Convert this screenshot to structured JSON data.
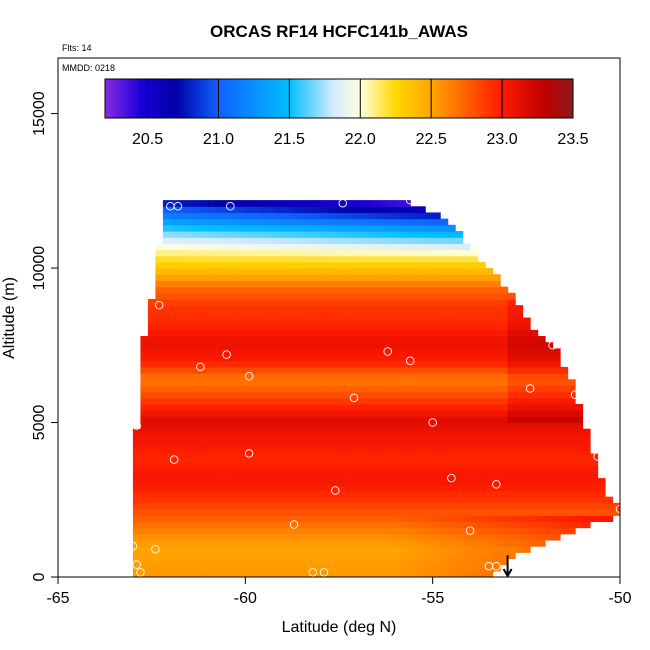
{
  "chart_data": {
    "type": "heatmap",
    "title": "ORCAS RF14 HCFC141b_AWAS",
    "annotations": {
      "flights": "Flts: 14",
      "date": "MMDD: 0218"
    },
    "xlabel": "Latitude (deg N)",
    "ylabel": "Altitude (m)",
    "xlim": [
      -65,
      -50
    ],
    "ylim": [
      0,
      16800
    ],
    "x_ticks": [
      -65,
      -60,
      -55,
      -50
    ],
    "x_tick_labels": [
      "-65",
      "-60",
      "-55",
      "-50"
    ],
    "y_ticks": [
      0,
      5000,
      10000,
      15000
    ],
    "y_tick_labels": [
      "0",
      "5000",
      "10000",
      "15000"
    ],
    "colorbar": {
      "min": 20.2,
      "max": 23.5,
      "ticks": [
        20.5,
        21.0,
        21.5,
        22.0,
        22.5,
        23.0,
        23.5
      ],
      "tick_labels": [
        "20.5",
        "21.0",
        "21.5",
        "22.0",
        "22.5",
        "23.0",
        "23.5"
      ],
      "stops": [
        {
          "value": 20.2,
          "color": "#8a2be2"
        },
        {
          "value": 20.45,
          "color": "#1a00d8"
        },
        {
          "value": 20.7,
          "color": "#0000a8"
        },
        {
          "value": 21.0,
          "color": "#1060ff"
        },
        {
          "value": 21.5,
          "color": "#00bfff"
        },
        {
          "value": 21.8,
          "color": "#cfe9ff"
        },
        {
          "value": 22.0,
          "color": "#ffffe0"
        },
        {
          "value": 22.25,
          "color": "#ffd700"
        },
        {
          "value": 22.5,
          "color": "#ffa500"
        },
        {
          "value": 23.0,
          "color": "#ff1a00"
        },
        {
          "value": 23.3,
          "color": "#c00000"
        },
        {
          "value": 23.5,
          "color": "#8b1a1a"
        }
      ]
    },
    "coverage_boundary": [
      [
        -63.0,
        0
      ],
      [
        -63.0,
        4900
      ],
      [
        -62.8,
        4900
      ],
      [
        -62.8,
        7800
      ],
      [
        -62.5,
        7800
      ],
      [
        -62.5,
        9000
      ],
      [
        -62.3,
        9000
      ],
      [
        -62.3,
        10800
      ],
      [
        -62.1,
        10800
      ],
      [
        -62.1,
        12200
      ],
      [
        -55.8,
        12200
      ],
      [
        -55.0,
        11800
      ],
      [
        -54.3,
        11200
      ],
      [
        -53.5,
        10000
      ],
      [
        -52.9,
        9200
      ],
      [
        -52.4,
        8200
      ],
      [
        -51.8,
        7600
      ],
      [
        -51.2,
        6200
      ],
      [
        -51.0,
        5200
      ],
      [
        -50.7,
        4000
      ],
      [
        -50.4,
        2800
      ],
      [
        -50.0,
        2200
      ],
      [
        -50.0,
        2000
      ],
      [
        -51.0,
        1600
      ],
      [
        -52.0,
        1100
      ],
      [
        -53.0,
        600
      ],
      [
        -53.5,
        0
      ]
    ],
    "gradient_keypoints": [
      {
        "alt": 0,
        "value": 22.55
      },
      {
        "alt": 900,
        "value": 22.5
      },
      {
        "alt": 1400,
        "value": 22.6
      },
      {
        "alt": 1900,
        "value": 22.75
      },
      {
        "alt": 2500,
        "value": 22.9
      },
      {
        "alt": 3200,
        "value": 23.05
      },
      {
        "alt": 3800,
        "value": 22.95
      },
      {
        "alt": 4500,
        "value": 23.05
      },
      {
        "alt": 5100,
        "value": 23.15
      },
      {
        "alt": 5800,
        "value": 22.85
      },
      {
        "alt": 6400,
        "value": 22.65
      },
      {
        "alt": 7000,
        "value": 23.0
      },
      {
        "alt": 7600,
        "value": 23.1
      },
      {
        "alt": 8200,
        "value": 22.95
      },
      {
        "alt": 8800,
        "value": 22.9
      },
      {
        "alt": 9400,
        "value": 22.7
      },
      {
        "alt": 9900,
        "value": 22.4
      },
      {
        "alt": 10400,
        "value": 22.15
      },
      {
        "alt": 10800,
        "value": 21.9
      },
      {
        "alt": 11200,
        "value": 21.6
      },
      {
        "alt": 11600,
        "value": 21.2
      },
      {
        "alt": 12000,
        "value": 20.85
      },
      {
        "alt": 12200,
        "value": 20.6
      }
    ],
    "sample_points": [
      {
        "lat": -62.0,
        "alt": 12000
      },
      {
        "lat": -61.8,
        "alt": 12000
      },
      {
        "lat": -60.4,
        "alt": 12000
      },
      {
        "lat": -57.4,
        "alt": 12100
      },
      {
        "lat": -55.6,
        "alt": 12200
      },
      {
        "lat": -62.3,
        "alt": 8800
      },
      {
        "lat": -60.5,
        "alt": 7200
      },
      {
        "lat": -61.2,
        "alt": 6800
      },
      {
        "lat": -59.9,
        "alt": 6500
      },
      {
        "lat": -56.2,
        "alt": 7300
      },
      {
        "lat": -55.6,
        "alt": 7000
      },
      {
        "lat": -51.8,
        "alt": 7500
      },
      {
        "lat": -57.1,
        "alt": 5800
      },
      {
        "lat": -52.4,
        "alt": 6100
      },
      {
        "lat": -51.2,
        "alt": 5900
      },
      {
        "lat": -62.9,
        "alt": 4900
      },
      {
        "lat": -55.0,
        "alt": 5000
      },
      {
        "lat": -61.9,
        "alt": 3800
      },
      {
        "lat": -59.9,
        "alt": 4000
      },
      {
        "lat": -54.5,
        "alt": 3200
      },
      {
        "lat": -53.3,
        "alt": 3000
      },
      {
        "lat": -50.6,
        "alt": 3900
      },
      {
        "lat": -57.6,
        "alt": 2800
      },
      {
        "lat": -58.7,
        "alt": 1700
      },
      {
        "lat": -54.0,
        "alt": 1500
      },
      {
        "lat": -63.0,
        "alt": 1000
      },
      {
        "lat": -62.4,
        "alt": 900
      },
      {
        "lat": -62.9,
        "alt": 400
      },
      {
        "lat": -62.8,
        "alt": 150
      },
      {
        "lat": -58.2,
        "alt": 150
      },
      {
        "lat": -57.9,
        "alt": 150
      },
      {
        "lat": -53.5,
        "alt": 350
      },
      {
        "lat": -53.3,
        "alt": 350
      },
      {
        "lat": -50.0,
        "alt": 2200
      }
    ],
    "arrow_marker": {
      "lat": -53.0,
      "alt_from": 700,
      "alt_to": 0
    }
  }
}
